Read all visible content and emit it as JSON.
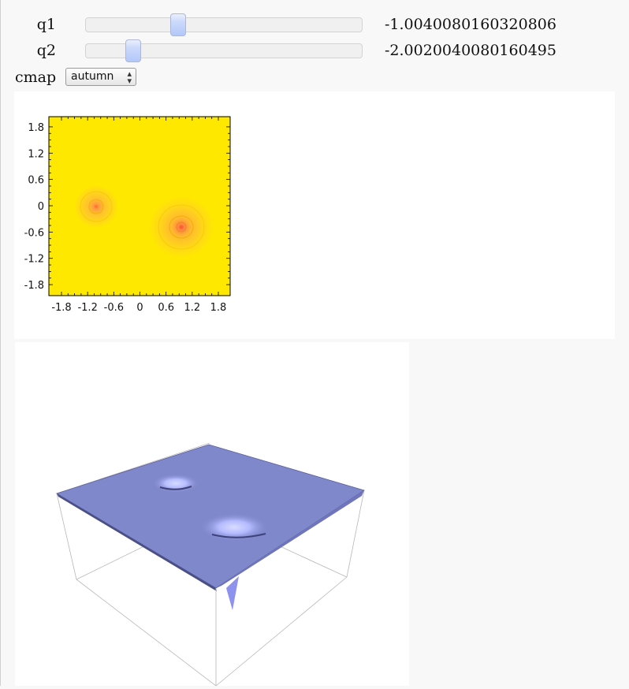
{
  "controls": {
    "q1": {
      "label": "q1",
      "value_text": "-1.0040080160320806",
      "slider_fraction": 0.335
    },
    "q2": {
      "label": "q2",
      "value_text": "-2.0020040080160495",
      "slider_fraction": 0.17
    },
    "cmap": {
      "label": "cmap",
      "selected": "autumn"
    }
  },
  "contour_plot": {
    "x_ticks": [
      "-1.8",
      "-1.2",
      "-0.6",
      "0",
      "0.6",
      "1.2",
      "1.8"
    ],
    "y_ticks": [
      "1.8",
      "1.2",
      "0.6",
      "0",
      "-0.6",
      "-1.2",
      "-1.8"
    ],
    "colormap": "autumn",
    "background_color": "#ffe800",
    "wells": [
      {
        "name": "well-left",
        "x": -1.0,
        "y": 0.0
      },
      {
        "name": "well-right",
        "x": 1.0,
        "y": -0.5
      }
    ]
  },
  "surface_plot": {
    "surface_color": "#8088cc"
  }
}
